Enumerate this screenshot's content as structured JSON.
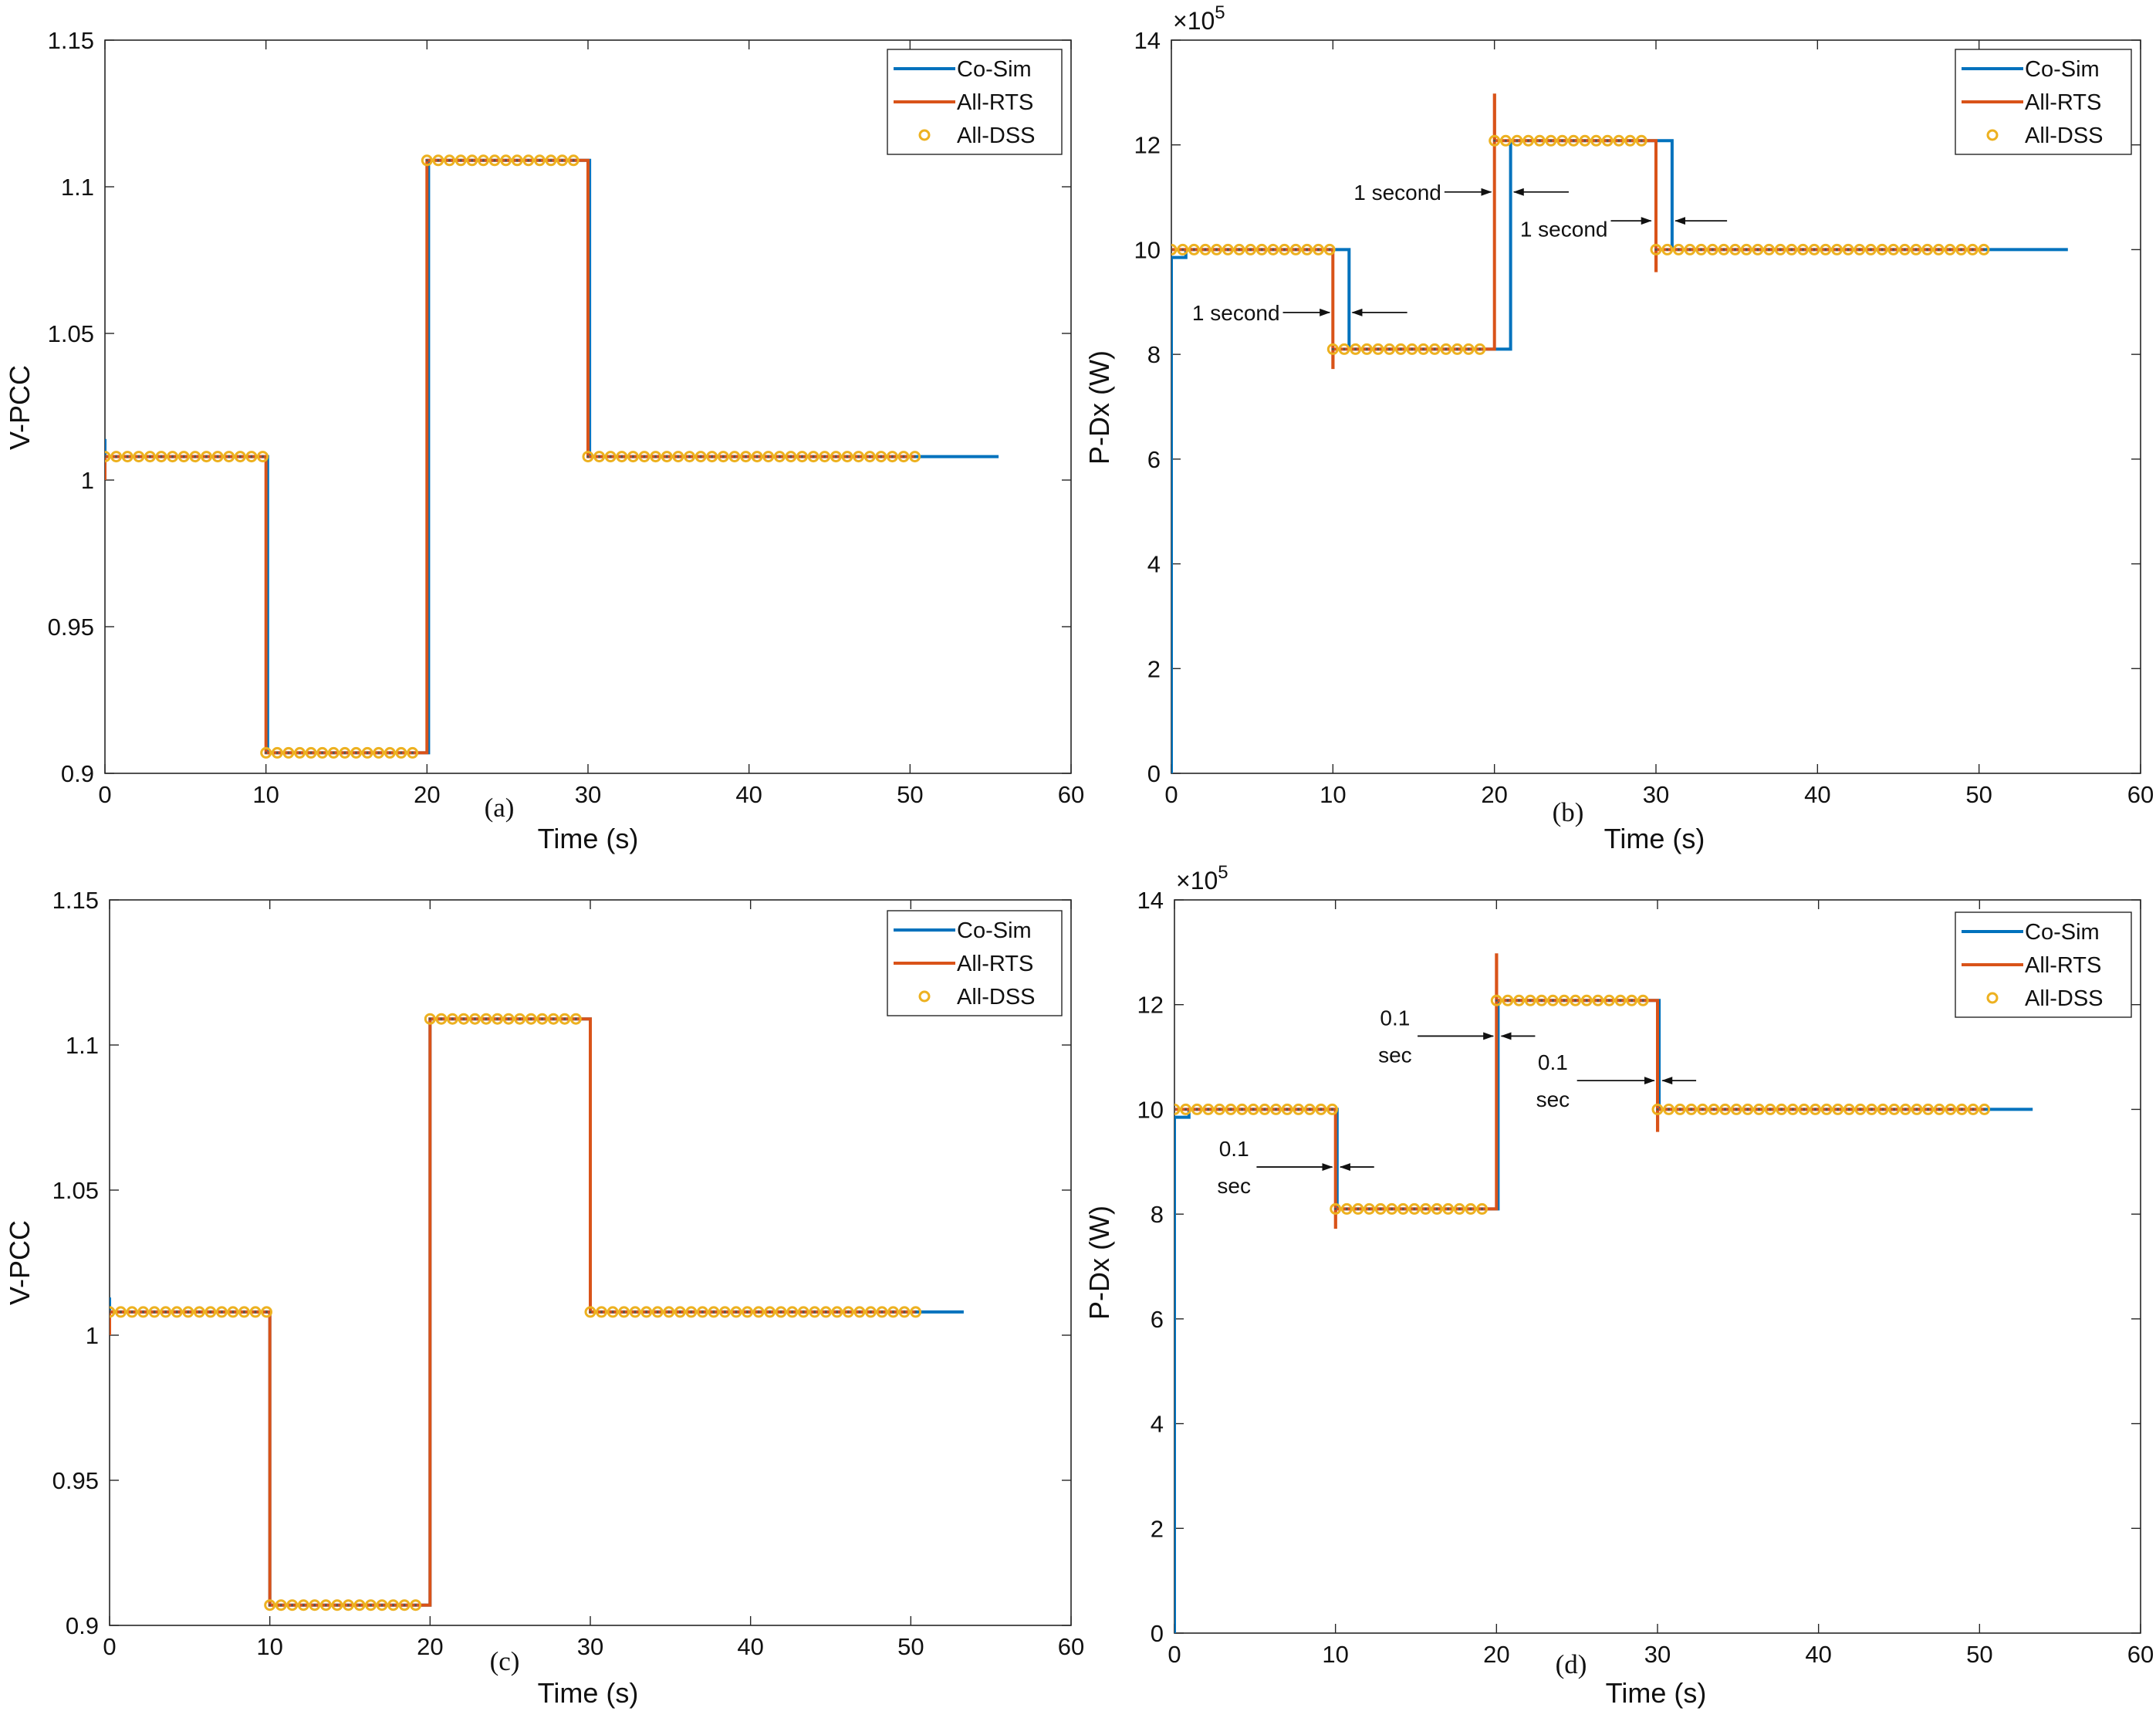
{
  "colors": {
    "co_sim": "#0072BD",
    "all_rts": "#D95319",
    "all_dss": "#EDB120",
    "axis": "#262626"
  },
  "legend_labels": [
    "Co-Sim",
    "All-RTS",
    "All-DSS"
  ],
  "chart_data": [
    {
      "id": "a",
      "type": "line",
      "panel_label": "(a)",
      "xlabel": "Time (s)",
      "ylabel": "V-PCC",
      "xlim": [
        0,
        60
      ],
      "ylim": [
        0.9,
        1.15
      ],
      "xticks": [
        0,
        10,
        20,
        30,
        40,
        50,
        60
      ],
      "xtick_labels": [
        "0",
        "10",
        "20",
        "30",
        "40",
        "50",
        "60"
      ],
      "yticks": [
        0.9,
        0.95,
        1,
        1.05,
        1.1,
        1.15
      ],
      "ytick_labels": [
        "0.9",
        "0.95",
        "1",
        "1.05",
        "1.1",
        "1.15"
      ],
      "series": [
        {
          "name": "Co-Sim",
          "style": "line",
          "x": [
            0,
            0,
            0,
            0.1,
            10.1,
            10.1,
            20.1,
            20.1,
            30.1,
            30.1,
            55.5
          ],
          "y": [
            1.014,
            1.0,
            1.008,
            1.008,
            1.008,
            0.907,
            0.907,
            1.109,
            1.109,
            1.008,
            1.008
          ]
        },
        {
          "name": "All-RTS",
          "style": "line",
          "x": [
            0,
            0,
            0.1,
            10,
            10,
            20,
            20,
            30,
            30,
            50.3
          ],
          "y": [
            1.0,
            1.008,
            1.008,
            1.008,
            0.907,
            0.907,
            1.109,
            1.109,
            1.008,
            1.008
          ]
        },
        {
          "name": "All-DSS",
          "style": "markers",
          "segments": [
            [
              0,
              10,
              1.008
            ],
            [
              10,
              19.3,
              0.907
            ],
            [
              20,
              29.3,
              1.109
            ],
            [
              30,
              50.3,
              1.008
            ]
          ],
          "step": 0.7
        }
      ],
      "annotations": []
    },
    {
      "id": "b",
      "type": "line",
      "panel_label": "(b)",
      "xlabel": "Time (s)",
      "ylabel": "P-Dx (W)",
      "exponent": "10",
      "exponent_power": "5",
      "xlim": [
        0,
        60
      ],
      "ylim": [
        0,
        14
      ],
      "xticks": [
        0,
        10,
        20,
        30,
        40,
        50,
        60
      ],
      "xtick_labels": [
        "0",
        "10",
        "20",
        "30",
        "40",
        "50",
        "60"
      ],
      "yticks": [
        0,
        2,
        4,
        6,
        8,
        10,
        12,
        14
      ],
      "ytick_labels": [
        "0",
        "2",
        "4",
        "6",
        "8",
        "10",
        "12",
        "14"
      ],
      "series": [
        {
          "name": "Co-Sim",
          "style": "line",
          "x": [
            0,
            0,
            0.9,
            0.9,
            11,
            11,
            21,
            21,
            31,
            31,
            55.5
          ],
          "y": [
            0,
            9.85,
            9.85,
            10.0,
            10.0,
            8.1,
            8.1,
            12.08,
            12.08,
            10.0,
            10.0
          ]
        },
        {
          "name": "All-RTS",
          "style": "line",
          "x": [
            0,
            10,
            10,
            10.01,
            10.01,
            20,
            20,
            20.01,
            20.01,
            30,
            30,
            30.01,
            30.01,
            50.3
          ],
          "y": [
            10.0,
            10.0,
            7.75,
            7.75,
            8.1,
            8.1,
            12.95,
            12.95,
            12.08,
            12.08,
            9.6,
            9.6,
            10.0,
            10.0
          ]
        },
        {
          "name": "All-DSS",
          "style": "markers",
          "segments": [
            [
              0,
              10,
              10.0
            ],
            [
              10,
              19.3,
              8.1
            ],
            [
              20,
              29.3,
              12.08
            ],
            [
              30,
              50.3,
              10.0
            ]
          ],
          "step": 0.7
        }
      ],
      "annotations": [
        {
          "text": "1 second",
          "lines": [
            "1 second"
          ],
          "x": 7.0,
          "y": 8.8,
          "anchor": "end",
          "tip_x": 9.8,
          "tip_y": 8.8,
          "left_from": 11.2,
          "left_to": 14.6,
          "left_y": 8.8
        },
        {
          "text": "1 second",
          "lines": [
            "1 second"
          ],
          "x": 17.0,
          "y": 11.1,
          "anchor": "end",
          "tip_x": 19.8,
          "tip_y": 11.1,
          "left_from": 21.2,
          "left_to": 24.6,
          "left_y": 11.1
        },
        {
          "text": "1 second",
          "lines": [
            "1 second"
          ],
          "x": 27.3,
          "y": 10.4,
          "anchor": "end",
          "tip_x": 29.7,
          "tip_y": 10.55,
          "left_from": 31.2,
          "left_to": 34.4,
          "left_y": 10.55
        }
      ]
    },
    {
      "id": "c",
      "type": "line",
      "panel_label": "(c)",
      "xlabel": "Time (s)",
      "ylabel": "V-PCC",
      "xlim": [
        0,
        60
      ],
      "ylim": [
        0.9,
        1.15
      ],
      "xticks": [
        0,
        10,
        20,
        30,
        40,
        50,
        60
      ],
      "xtick_labels": [
        "0",
        "10",
        "20",
        "30",
        "40",
        "50",
        "60"
      ],
      "yticks": [
        0.9,
        0.95,
        1,
        1.05,
        1.1,
        1.15
      ],
      "ytick_labels": [
        "0.9",
        "0.95",
        "1",
        "1.05",
        "1.1",
        "1.15"
      ],
      "series": [
        {
          "name": "Co-Sim",
          "style": "line",
          "x": [
            0,
            0,
            0,
            0.1,
            10,
            10,
            20,
            20,
            30,
            30,
            53.3
          ],
          "y": [
            1.013,
            1.0,
            1.008,
            1.008,
            1.008,
            0.907,
            0.907,
            1.109,
            1.109,
            1.008,
            1.008
          ]
        },
        {
          "name": "All-RTS",
          "style": "line",
          "x": [
            0,
            0,
            0.1,
            10,
            10,
            20,
            20,
            30,
            30,
            50.3
          ],
          "y": [
            1.0,
            1.008,
            1.008,
            1.008,
            0.907,
            0.907,
            1.109,
            1.109,
            1.008,
            1.008
          ]
        },
        {
          "name": "All-DSS",
          "style": "markers",
          "segments": [
            [
              0,
              10,
              1.008
            ],
            [
              10,
              19.3,
              0.907
            ],
            [
              20,
              29.3,
              1.109
            ],
            [
              30,
              50.3,
              1.008
            ]
          ],
          "step": 0.7
        }
      ],
      "annotations": []
    },
    {
      "id": "d",
      "type": "line",
      "panel_label": "(d)",
      "xlabel": "Time (s)",
      "ylabel": "P-Dx (W)",
      "exponent": "10",
      "exponent_power": "5",
      "xlim": [
        0,
        60
      ],
      "ylim": [
        0,
        14
      ],
      "xticks": [
        0,
        10,
        20,
        30,
        40,
        50,
        60
      ],
      "xtick_labels": [
        "0",
        "10",
        "20",
        "30",
        "40",
        "50",
        "60"
      ],
      "yticks": [
        0,
        2,
        4,
        6,
        8,
        10,
        12,
        14
      ],
      "ytick_labels": [
        "0",
        "2",
        "4",
        "6",
        "8",
        "10",
        "12",
        "14"
      ],
      "series": [
        {
          "name": "Co-Sim",
          "style": "line",
          "x": [
            0,
            0,
            0.9,
            0.9,
            10.1,
            10.1,
            20.1,
            20.1,
            30.1,
            30.1,
            53.3
          ],
          "y": [
            0,
            9.85,
            9.85,
            10.0,
            10.0,
            8.1,
            8.1,
            12.08,
            12.08,
            10.0,
            10.0
          ]
        },
        {
          "name": "All-RTS",
          "style": "line",
          "x": [
            0,
            10,
            10,
            10.01,
            10.01,
            20,
            20,
            20.01,
            20.01,
            30,
            30,
            30.01,
            30.01,
            50.3
          ],
          "y": [
            10.0,
            10.0,
            7.75,
            7.75,
            8.1,
            8.1,
            12.95,
            12.95,
            12.08,
            12.08,
            9.6,
            9.6,
            10.0,
            10.0
          ]
        },
        {
          "name": "All-DSS",
          "style": "markers",
          "segments": [
            [
              0,
              10,
              10.0
            ],
            [
              10,
              19.3,
              8.1
            ],
            [
              20,
              29.3,
              12.08
            ],
            [
              30,
              50.3,
              10.0
            ]
          ],
          "step": 0.7
        }
      ],
      "annotations": [
        {
          "text": "0.1 sec",
          "lines": [
            "0.1",
            "sec"
          ],
          "x": 3.7,
          "y": 8.9,
          "anchor": "middle",
          "tip_x": 9.8,
          "tip_y": 8.9,
          "arrow_from_x": 5.1,
          "left_from": 10.3,
          "left_to": 12.4,
          "left_y": 8.9
        },
        {
          "text": "0.1 sec",
          "lines": [
            "0.1",
            "sec"
          ],
          "x": 13.7,
          "y": 11.4,
          "anchor": "middle",
          "tip_x": 19.8,
          "tip_y": 11.4,
          "arrow_from_x": 15.1,
          "left_from": 20.3,
          "left_to": 22.4,
          "left_y": 11.4
        },
        {
          "text": "0.1 sec",
          "lines": [
            "0.1",
            "sec"
          ],
          "x": 23.5,
          "y": 10.55,
          "anchor": "middle",
          "tip_x": 29.8,
          "tip_y": 10.55,
          "arrow_from_x": 25.0,
          "left_from": 30.3,
          "left_to": 32.4,
          "left_y": 10.55
        }
      ]
    }
  ]
}
